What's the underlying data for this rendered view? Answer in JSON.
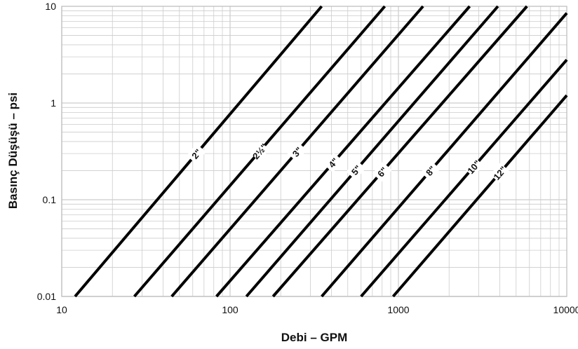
{
  "chart_data": {
    "type": "line",
    "title": "",
    "xlabel": "Debi – GPM",
    "ylabel": "Basınç Düşüşü – psi",
    "xscale": "log",
    "yscale": "log",
    "xlim": [
      10,
      10000
    ],
    "ylim": [
      0.01,
      10
    ],
    "grid": true,
    "x_ticks": [
      {
        "value": 10,
        "label": "10"
      },
      {
        "value": 100,
        "label": "100"
      },
      {
        "value": 1000,
        "label": "1000"
      },
      {
        "value": 10000,
        "label": "10000"
      }
    ],
    "y_ticks": [
      {
        "value": 0.01,
        "label": "0.01"
      },
      {
        "value": 0.1,
        "label": "0.1"
      },
      {
        "value": 1,
        "label": "1"
      },
      {
        "value": 10,
        "label": "10"
      }
    ],
    "series": [
      {
        "name": "2\"",
        "points": [
          [
            12,
            0.01
          ],
          [
            350,
            10
          ]
        ],
        "label_at": 63
      },
      {
        "name": "2½\"",
        "points": [
          [
            27,
            0.01
          ],
          [
            830,
            10
          ]
        ],
        "label_at": 150
      },
      {
        "name": "3\"",
        "points": [
          [
            45,
            0.01
          ],
          [
            1400,
            10
          ]
        ],
        "label_at": 250
      },
      {
        "name": "4\"",
        "points": [
          [
            83,
            0.01
          ],
          [
            2650,
            10
          ]
        ],
        "label_at": 410
      },
      {
        "name": "5\"",
        "points": [
          [
            125,
            0.01
          ],
          [
            3900,
            10
          ]
        ],
        "label_at": 560
      },
      {
        "name": "6\"",
        "points": [
          [
            180,
            0.01
          ],
          [
            5800,
            10
          ]
        ],
        "label_at": 800
      },
      {
        "name": "8\"",
        "points": [
          [
            350,
            0.01
          ],
          [
            10000,
            8.5
          ]
        ],
        "label_at": 1550
      },
      {
        "name": "10\"",
        "points": [
          [
            600,
            0.01
          ],
          [
            10000,
            2.8
          ]
        ],
        "label_at": 2800
      },
      {
        "name": "12\"",
        "points": [
          [
            930,
            0.01
          ],
          [
            10000,
            1.2
          ]
        ],
        "label_at": 4000
      }
    ],
    "colors": {
      "line": "#000000",
      "grid": "#cccccc",
      "frame": "#bbbbbb"
    }
  }
}
